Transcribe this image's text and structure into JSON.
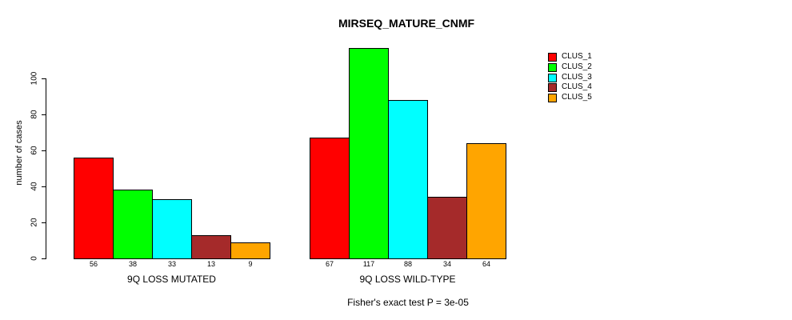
{
  "title": "MIRSEQ_MATURE_CNMF",
  "caption": "Fisher's exact test P = 3e-05",
  "chart_data": {
    "type": "bar",
    "title": "MIRSEQ_MATURE_CNMF",
    "ylabel": "number of cases",
    "xlabel": "",
    "yticks": [
      0,
      20,
      40,
      60,
      80,
      100
    ],
    "ylim": [
      0,
      117
    ],
    "grid": false,
    "legend_position": "top-right",
    "categories": [
      "9Q LOSS MUTATED",
      "9Q LOSS WILD-TYPE"
    ],
    "series": [
      {
        "name": "CLUS_1",
        "color": "#FF0000",
        "values": [
          56,
          67
        ]
      },
      {
        "name": "CLUS_2",
        "color": "#00FF00",
        "values": [
          38,
          117
        ]
      },
      {
        "name": "CLUS_3",
        "color": "#00FFFF",
        "values": [
          33,
          88
        ]
      },
      {
        "name": "CLUS_4",
        "color": "#A52A2A",
        "values": [
          13,
          34
        ]
      },
      {
        "name": "CLUS_5",
        "color": "#FFA500",
        "values": [
          9,
          64
        ]
      }
    ],
    "groups": [
      {
        "label": "9Q LOSS MUTATED",
        "values": [
          56,
          38,
          33,
          13,
          9
        ]
      },
      {
        "label": "9Q LOSS WILD-TYPE",
        "values": [
          67,
          117,
          88,
          34,
          64
        ]
      }
    ],
    "bar_value_labels_shown": true,
    "annotation": "Fisher's exact test P = 3e-05"
  },
  "colors": {
    "background": "#FFFFFF",
    "axis": "#000000",
    "text": "#000000"
  }
}
